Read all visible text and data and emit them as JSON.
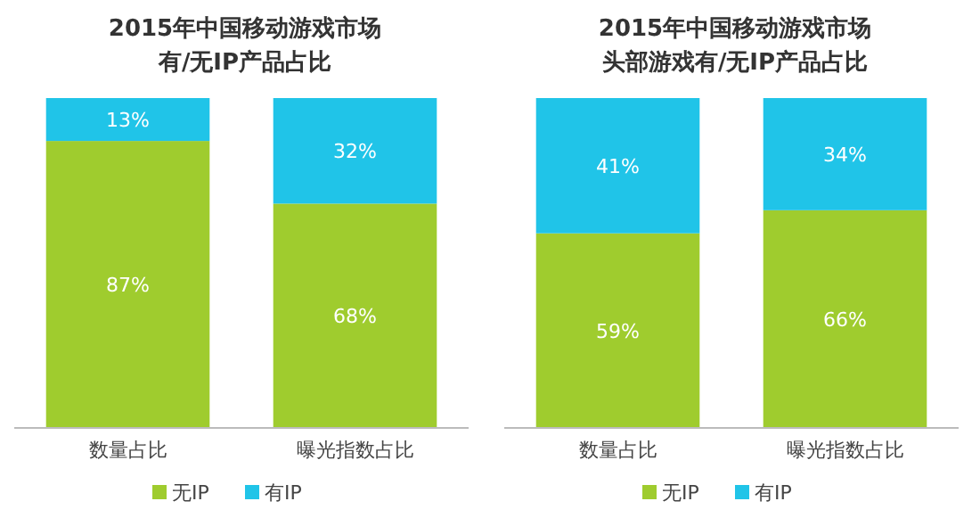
{
  "chart_data": [
    {
      "type": "bar",
      "stacked": true,
      "title": "2015年中国移动游戏市场",
      "subtitle": "有/无IP产品占比",
      "categories": [
        "数量占比",
        "曝光指数占比"
      ],
      "legend": "bottom",
      "series": [
        {
          "name": "无IP",
          "color": "#9fcc2e",
          "values": [
            87,
            68
          ],
          "value_labels": [
            "87%",
            "68%"
          ]
        },
        {
          "name": "有IP",
          "color": "#20c4e8",
          "values": [
            13,
            32
          ],
          "value_labels": [
            "13%",
            "32%"
          ]
        }
      ]
    },
    {
      "type": "bar",
      "stacked": true,
      "title": "2015年中国移动游戏市场",
      "subtitle": "头部游戏有/无IP产品占比",
      "categories": [
        "数量占比",
        "曝光指数占比"
      ],
      "legend": "bottom",
      "series": [
        {
          "name": "无IP",
          "color": "#9fcc2e",
          "values": [
            59,
            66
          ],
          "value_labels": [
            "59%",
            "66%"
          ]
        },
        {
          "name": "有IP",
          "color": "#20c4e8",
          "values": [
            41,
            34
          ],
          "value_labels": [
            "41%",
            "34%"
          ]
        }
      ]
    }
  ]
}
